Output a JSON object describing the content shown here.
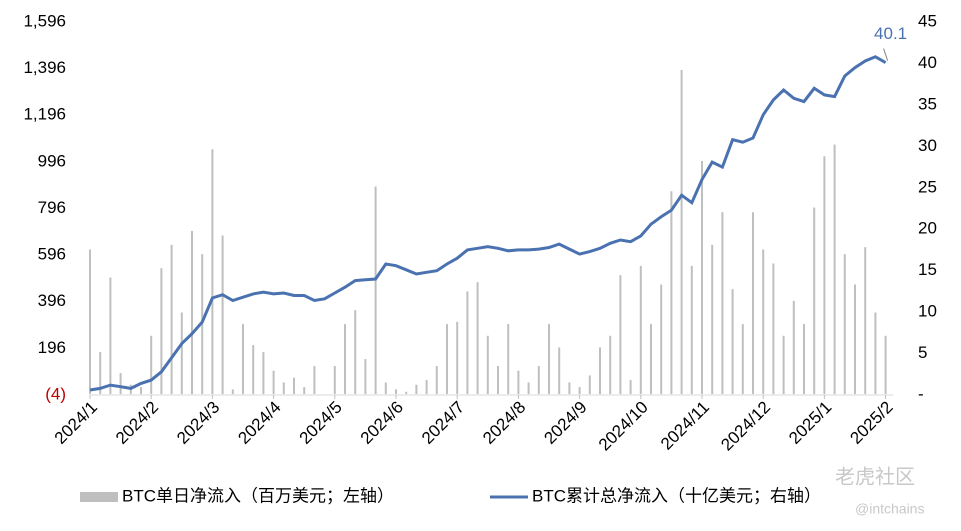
{
  "chart_data": {
    "type": "bar_line",
    "categories": [
      "2024/1",
      null,
      null,
      null,
      null,
      null,
      "2024/2",
      null,
      null,
      null,
      null,
      null,
      "2024/3",
      null,
      null,
      null,
      null,
      null,
      "2024/4",
      null,
      null,
      null,
      null,
      null,
      "2024/5",
      null,
      null,
      null,
      null,
      null,
      "2024/6",
      null,
      null,
      null,
      null,
      null,
      "2024/7",
      null,
      null,
      null,
      null,
      null,
      "2024/8",
      null,
      null,
      null,
      null,
      null,
      "2024/9",
      null,
      null,
      null,
      null,
      null,
      "2024/10",
      null,
      null,
      null,
      null,
      null,
      "2024/11",
      null,
      null,
      null,
      null,
      null,
      "2024/12",
      null,
      null,
      null,
      null,
      null,
      "2025/1",
      null,
      null,
      null,
      null,
      null,
      "2025/2"
    ],
    "series": [
      {
        "name": "BTC单日净流入（百万美元；左轴）",
        "type": "bar",
        "color": "#bfbfbf",
        "values": [
          620,
          180,
          500,
          90,
          40,
          30,
          250,
          540,
          640,
          350,
          700,
          600,
          1050,
          680,
          20,
          300,
          210,
          180,
          100,
          50,
          70,
          30,
          120,
          0,
          120,
          300,
          360,
          150,
          890,
          50,
          20,
          10,
          40,
          60,
          120,
          300,
          310,
          440,
          480,
          250,
          120,
          300,
          100,
          50,
          120,
          300,
          200,
          50,
          30,
          80,
          200,
          250,
          510,
          60,
          550,
          300,
          470,
          870,
          1390,
          550,
          1000,
          640,
          780,
          450,
          300,
          780,
          620,
          560,
          250,
          400,
          300,
          800,
          1020,
          1070,
          600,
          470,
          630,
          350,
          250
        ]
      },
      {
        "name": "BTC累计总净流入（十亿美元；右轴）",
        "type": "line",
        "axis": "y2",
        "color": "#4a72b0",
        "values": [
          0.6,
          0.8,
          1.2,
          1.0,
          0.8,
          1.4,
          1.8,
          2.8,
          4.5,
          6.2,
          7.4,
          8.8,
          11.7,
          12.1,
          11.4,
          11.8,
          12.2,
          12.4,
          12.2,
          12.3,
          12.0,
          12.0,
          11.4,
          11.6,
          12.3,
          13.0,
          13.8,
          13.9,
          14.0,
          15.8,
          15.6,
          15.1,
          14.6,
          14.8,
          15.0,
          15.8,
          16.5,
          17.5,
          17.7,
          17.9,
          17.7,
          17.4,
          17.5,
          17.5,
          17.6,
          17.8,
          18.2,
          17.6,
          17.0,
          17.3,
          17.7,
          18.3,
          18.7,
          18.5,
          19.2,
          20.6,
          21.5,
          22.3,
          24.1,
          23.2,
          26.0,
          28.1,
          27.5,
          30.8,
          30.5,
          31.0,
          33.8,
          35.6,
          36.8,
          35.8,
          35.4,
          37.0,
          36.2,
          36.0,
          38.5,
          39.5,
          40.3,
          40.8,
          40.1
        ]
      }
    ],
    "ylim": [
      -4,
      1596
    ],
    "yticks": [
      {
        "value": -4,
        "label": "(4)"
      },
      196,
      396,
      596,
      796,
      996,
      {
        "value": 1196,
        "label": "1,196"
      },
      {
        "value": 1396,
        "label": "1,396"
      },
      {
        "value": 1596,
        "label": "1,596"
      }
    ],
    "negative_label_color": "#c00000",
    "y2lim": [
      0,
      45
    ],
    "y2ticks": [
      {
        "value": 0,
        "label": "-"
      },
      5,
      10,
      15,
      20,
      25,
      30,
      35,
      40,
      45
    ],
    "last_value_label": true,
    "legend": "bottom",
    "watermark": [
      "老虎社区",
      "@intchains"
    ]
  }
}
